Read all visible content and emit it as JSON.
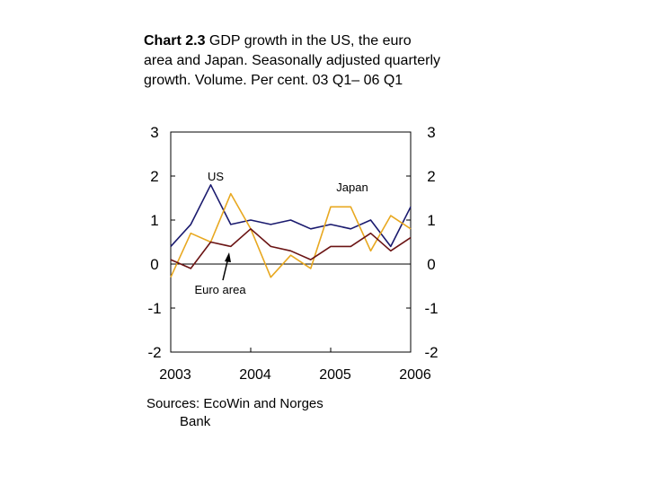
{
  "title": {
    "label": "Chart 2.3",
    "text": "GDP growth in the US, the euro area and Japan. Seasonally adjusted quarterly growth. Volume. Per cent. 03 Q1– 06 Q1"
  },
  "source": {
    "line1": "Sources: EcoWin and Norges",
    "line2": "Bank"
  },
  "chart_data": {
    "type": "line",
    "x": [
      "2003 Q1",
      "2003 Q2",
      "2003 Q3",
      "2003 Q4",
      "2004 Q1",
      "2004 Q2",
      "2004 Q3",
      "2004 Q4",
      "2005 Q1",
      "2005 Q2",
      "2005 Q3",
      "2005 Q4",
      "2006 Q1"
    ],
    "x_ticks": [
      "2003",
      "2004",
      "2005",
      "2006"
    ],
    "y_ticks_left": [
      "3",
      "2",
      "1",
      "0",
      "-1",
      "-2"
    ],
    "y_ticks_right": [
      "3",
      "2",
      "1",
      "0",
      "-1",
      "-2"
    ],
    "ylim": [
      -2,
      3
    ],
    "series": [
      {
        "name": "US",
        "color": "#1a1a6e",
        "values": [
          0.4,
          0.9,
          1.8,
          0.9,
          1.0,
          0.9,
          1.0,
          0.8,
          0.9,
          0.8,
          1.0,
          0.4,
          1.3
        ]
      },
      {
        "name": "Japan",
        "color": "#e8a820",
        "values": [
          -0.3,
          0.7,
          0.5,
          1.6,
          0.8,
          -0.3,
          0.2,
          -0.1,
          1.3,
          1.3,
          0.3,
          1.1,
          0.8
        ]
      },
      {
        "name": "Euro area",
        "color": "#6b1414",
        "values": [
          0.1,
          -0.1,
          0.5,
          0.4,
          0.8,
          0.4,
          0.3,
          0.1,
          0.4,
          0.4,
          0.7,
          0.3,
          0.6
        ]
      }
    ],
    "annotations": [
      {
        "text": "US",
        "series": "US"
      },
      {
        "text": "Japan",
        "series": "Japan"
      },
      {
        "text": "Euro area",
        "series": "Euro area",
        "arrow": true
      }
    ]
  }
}
